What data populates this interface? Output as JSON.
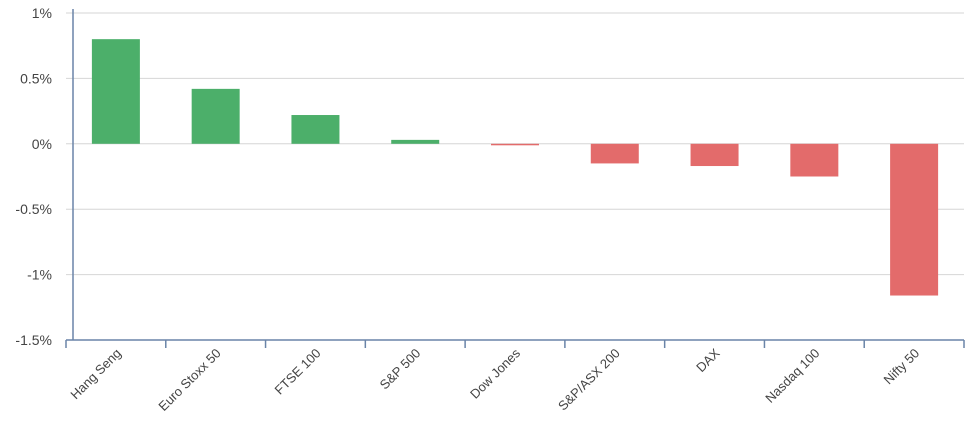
{
  "chart_data": {
    "type": "bar",
    "title": "",
    "xlabel": "",
    "ylabel": "",
    "ylim": [
      -1.5,
      1
    ],
    "yticks": [
      1,
      0.5,
      0,
      -0.5,
      -1,
      -1.5
    ],
    "ytick_labels": [
      "1%",
      "0.5%",
      "0%",
      "-0.5%",
      "-1%",
      "-1.5%"
    ],
    "grid": true,
    "categories": [
      "Hang Seng",
      "Euro Stoxx 50",
      "FTSE 100",
      "S&P 500",
      "Dow Jones",
      "S&P/ASX 200",
      "DAX",
      "Nasdaq 100",
      "Nifty 50"
    ],
    "values": [
      0.8,
      0.42,
      0.22,
      0.03,
      -0.01,
      -0.15,
      -0.17,
      -0.25,
      -1.16
    ],
    "colors": {
      "positive": "#4caf6a",
      "negative": "#e36b6b",
      "grid": "#d6d6d6",
      "axis": "#6a84a8"
    }
  }
}
